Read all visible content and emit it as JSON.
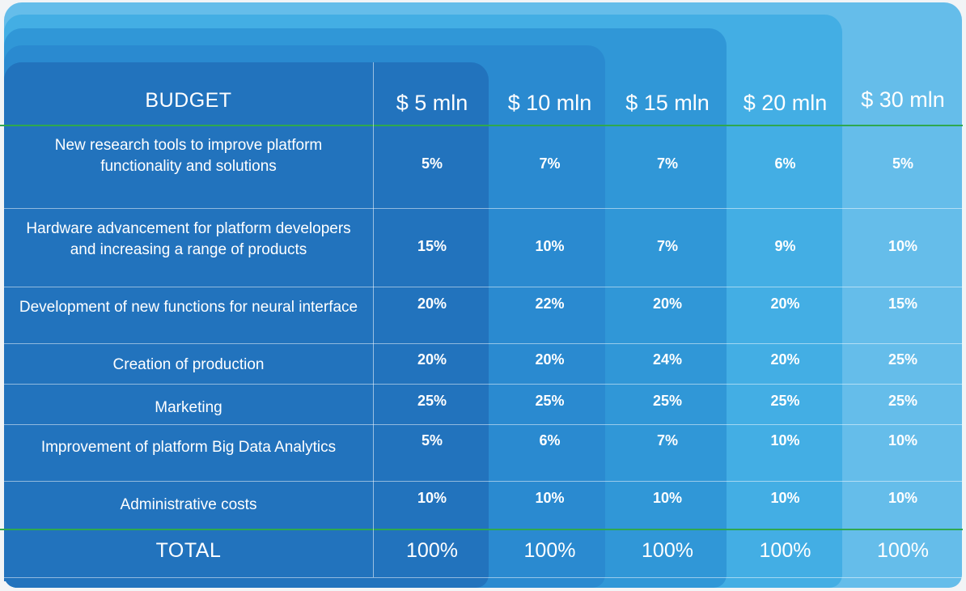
{
  "header": {
    "budget_label": "BUDGET",
    "columns": [
      "$ 5 mln",
      "$ 10 mln",
      "$ 15 mln",
      "$ 20 mln",
      "$ 30 mln"
    ]
  },
  "rows": [
    {
      "label": "New research tools to improve platform functionality and solutions",
      "values": [
        "5%",
        "7%",
        "7%",
        "6%",
        "5%"
      ]
    },
    {
      "label": "Hardware advancement for platform developers and increasing a range of products",
      "values": [
        "15%",
        "10%",
        "7%",
        "9%",
        "10%"
      ]
    },
    {
      "label": "Development of new functions for neural interface",
      "values": [
        "20%",
        "22%",
        "20%",
        "20%",
        "15%"
      ]
    },
    {
      "label": "Creation of production",
      "values": [
        "20%",
        "20%",
        "24%",
        "20%",
        "25%"
      ]
    },
    {
      "label": "Marketing",
      "values": [
        "25%",
        "25%",
        "25%",
        "25%",
        "25%"
      ]
    },
    {
      "label": "Improvement of platform Big Data Analytics",
      "values": [
        "5%",
        "6%",
        "7%",
        "10%",
        "10%"
      ]
    },
    {
      "label": "Administrative costs",
      "values": [
        "10%",
        "10%",
        "10%",
        "10%",
        "10%"
      ]
    }
  ],
  "total": {
    "label": "TOTAL",
    "values": [
      "100%",
      "100%",
      "100%",
      "100%",
      "100%"
    ]
  },
  "colors": {
    "tier_5": "#2273bd",
    "tier_10": "#2a8ad0",
    "tier_15": "#3097d7",
    "tier_20": "#43aee4",
    "tier_30": "#65bdea",
    "accent_line": "#2fa84f"
  }
}
